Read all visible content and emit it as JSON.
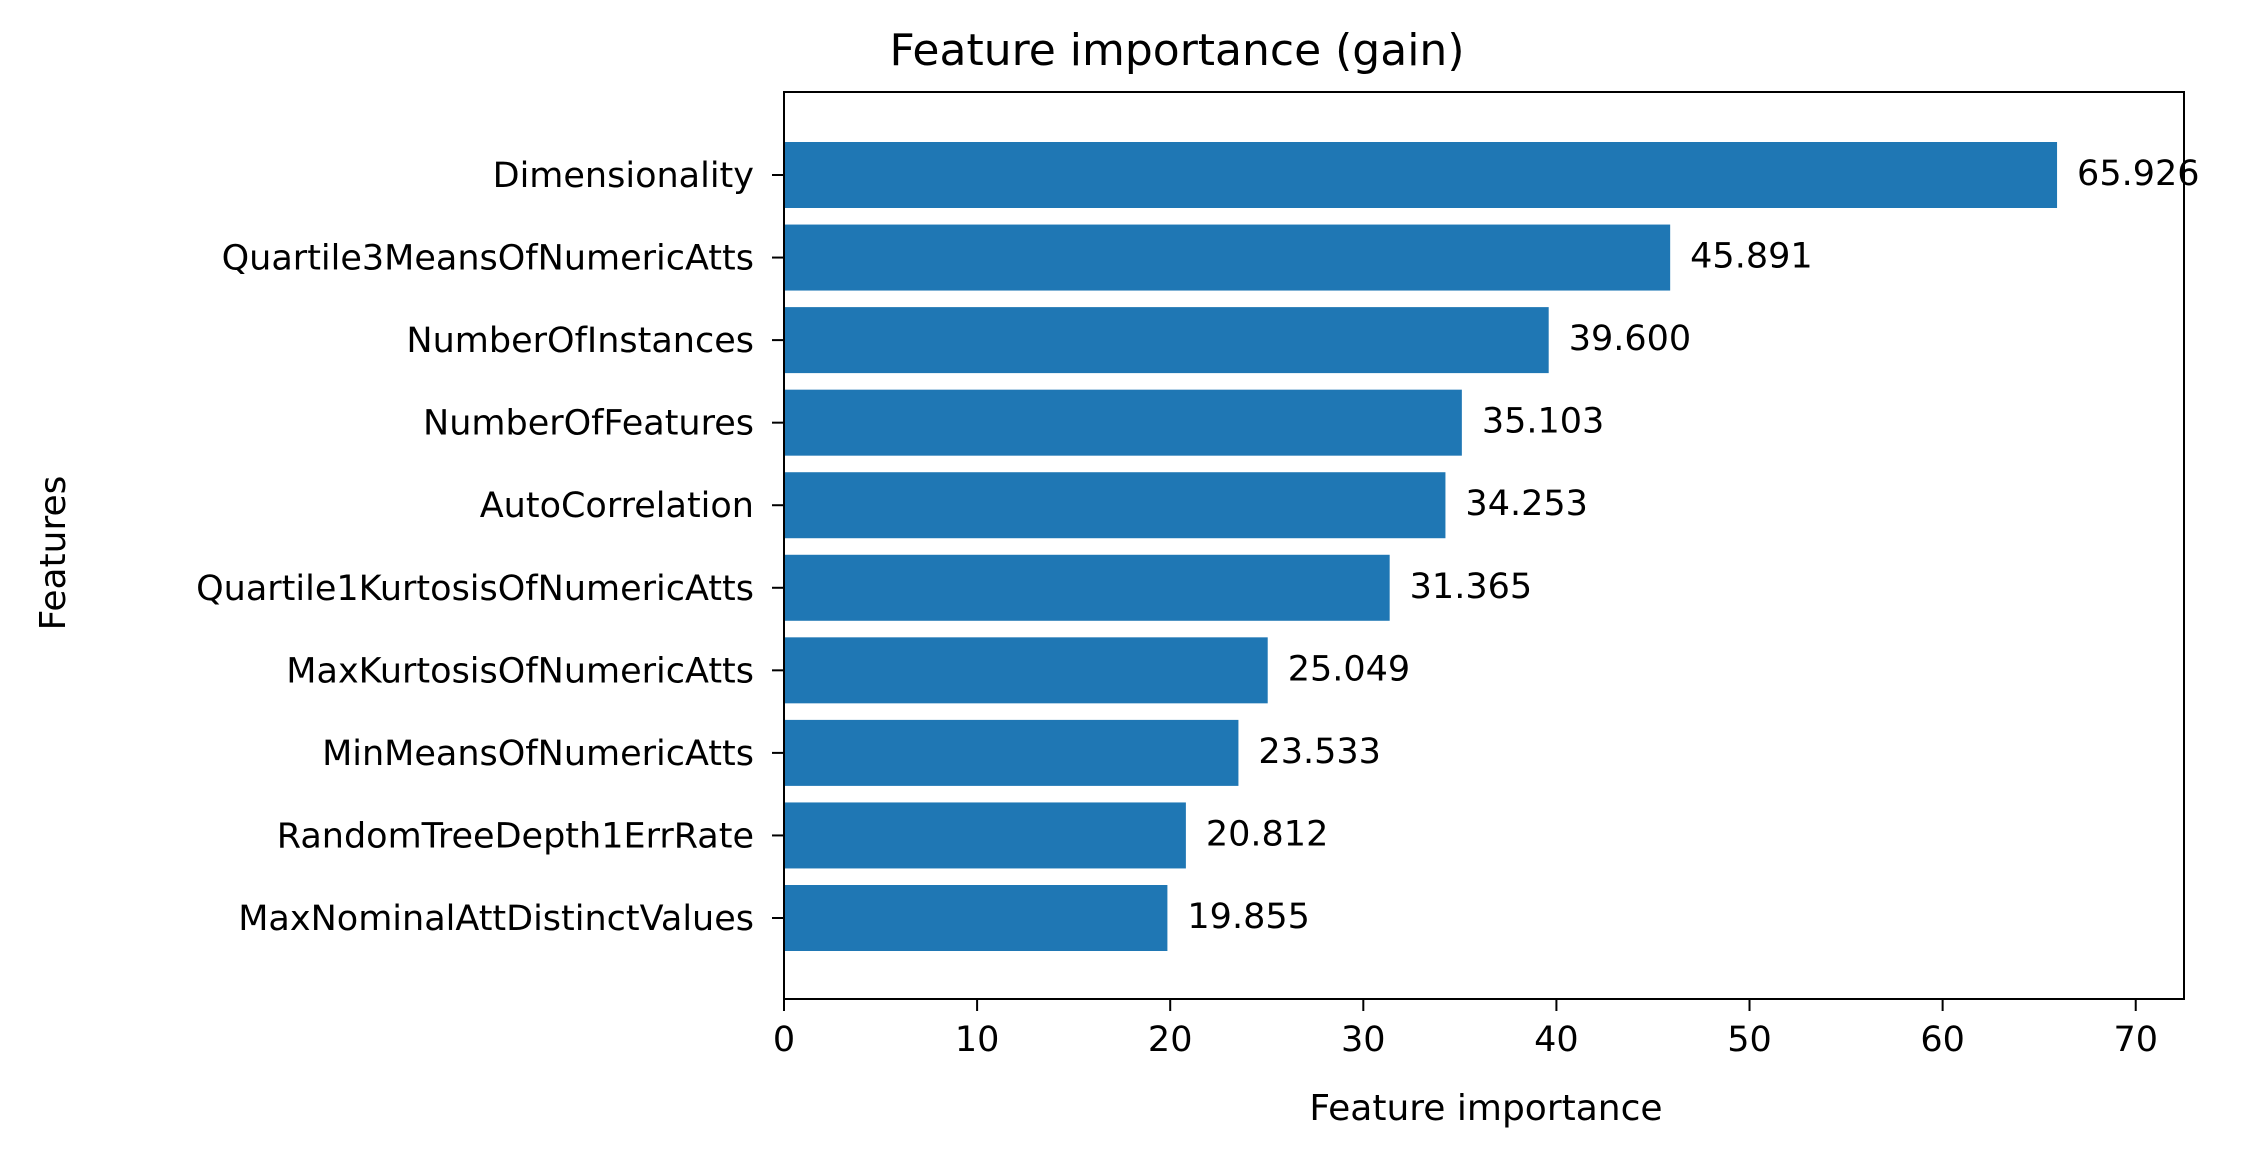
{
  "chart_data": {
    "type": "bar",
    "orientation": "horizontal",
    "title": "Feature importance (gain)",
    "xlabel": "Feature importance",
    "ylabel": "Features",
    "xlim": [
      0,
      72.5
    ],
    "xticks": [
      0,
      10,
      20,
      30,
      40,
      50,
      60,
      70
    ],
    "grid": false,
    "bar_color": "#1f77b4",
    "categories": [
      "Dimensionality",
      "Quartile3MeansOfNumericAtts",
      "NumberOfInstances",
      "NumberOfFeatures",
      "AutoCorrelation",
      "Quartile1KurtosisOfNumericAtts",
      "MaxKurtosisOfNumericAtts",
      "MinMeansOfNumericAtts",
      "RandomTreeDepth1ErrRate",
      "MaxNominalAttDistinctValues"
    ],
    "values": [
      65.926,
      45.891,
      39.6,
      35.103,
      34.253,
      31.365,
      25.049,
      23.533,
      20.812,
      19.855
    ],
    "value_labels": [
      "65.926",
      "45.891",
      "39.600",
      "35.103",
      "34.253",
      "31.365",
      "25.049",
      "23.533",
      "20.812",
      "19.855"
    ]
  }
}
